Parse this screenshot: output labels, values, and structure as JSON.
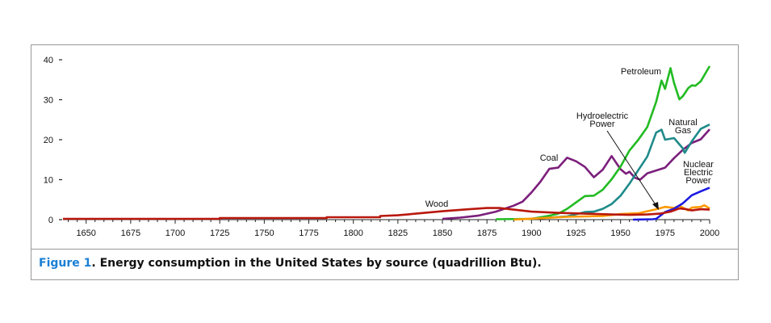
{
  "chart_data": {
    "type": "line",
    "title": "",
    "xlabel": "",
    "ylabel": "",
    "xlim": [
      1637,
      2000
    ],
    "ylim": [
      0,
      40
    ],
    "y_ticks": [
      0,
      10,
      20,
      30,
      40
    ],
    "x_ticks": [
      1650,
      1675,
      1700,
      1725,
      1750,
      1775,
      1800,
      1825,
      1850,
      1875,
      1900,
      1925,
      1950,
      1975,
      2000
    ],
    "grid": false,
    "series": [
      {
        "name": "Wood",
        "label_lines": [
          "Wood"
        ],
        "color": "#b8180e",
        "points": [
          [
            1637,
            0.2
          ],
          [
            1725,
            0.2
          ],
          [
            1725,
            0.4
          ],
          [
            1785,
            0.4
          ],
          [
            1785,
            0.6
          ],
          [
            1815,
            0.6
          ],
          [
            1815,
            0.9
          ],
          [
            1825,
            1.1
          ],
          [
            1835,
            1.5
          ],
          [
            1850,
            2.1
          ],
          [
            1865,
            2.6
          ],
          [
            1875,
            2.9
          ],
          [
            1882,
            2.9
          ],
          [
            1890,
            2.5
          ],
          [
            1900,
            2.0
          ],
          [
            1915,
            1.7
          ],
          [
            1930,
            1.5
          ],
          [
            1945,
            1.3
          ],
          [
            1955,
            1.2
          ],
          [
            1965,
            1.3
          ],
          [
            1972,
            1.5
          ],
          [
            1978,
            2.0
          ],
          [
            1983,
            2.8
          ],
          [
            1987,
            2.6
          ],
          [
            1990,
            2.3
          ],
          [
            1995,
            2.6
          ],
          [
            2000,
            2.5
          ]
        ]
      },
      {
        "name": "Coal",
        "label_lines": [
          "Coal"
        ],
        "color": "#7b1f7b",
        "points": [
          [
            1850,
            0.2
          ],
          [
            1860,
            0.5
          ],
          [
            1870,
            1.0
          ],
          [
            1880,
            2.0
          ],
          [
            1890,
            3.5
          ],
          [
            1895,
            4.5
          ],
          [
            1900,
            6.8
          ],
          [
            1905,
            9.5
          ],
          [
            1910,
            12.7
          ],
          [
            1915,
            13.0
          ],
          [
            1920,
            15.5
          ],
          [
            1925,
            14.6
          ],
          [
            1930,
            13.2
          ],
          [
            1935,
            10.6
          ],
          [
            1940,
            12.5
          ],
          [
            1945,
            15.9
          ],
          [
            1950,
            12.6
          ],
          [
            1953,
            11.5
          ],
          [
            1955,
            12.0
          ],
          [
            1958,
            10.5
          ],
          [
            1961,
            10.0
          ],
          [
            1965,
            11.6
          ],
          [
            1970,
            12.3
          ],
          [
            1975,
            13.0
          ],
          [
            1980,
            15.4
          ],
          [
            1985,
            17.5
          ],
          [
            1990,
            19.2
          ],
          [
            1995,
            20.1
          ],
          [
            2000,
            22.6
          ]
        ]
      },
      {
        "name": "Petroleum",
        "label_lines": [
          "Petroleum"
        ],
        "color": "#22bb22",
        "points": [
          [
            1880,
            0.1
          ],
          [
            1900,
            0.2
          ],
          [
            1910,
            1.0
          ],
          [
            1915,
            1.5
          ],
          [
            1920,
            2.7
          ],
          [
            1925,
            4.3
          ],
          [
            1930,
            5.9
          ],
          [
            1935,
            6.0
          ],
          [
            1940,
            7.5
          ],
          [
            1945,
            10.1
          ],
          [
            1950,
            13.3
          ],
          [
            1955,
            17.3
          ],
          [
            1960,
            20.0
          ],
          [
            1965,
            23.2
          ],
          [
            1970,
            29.5
          ],
          [
            1973,
            34.8
          ],
          [
            1975,
            32.7
          ],
          [
            1978,
            37.9
          ],
          [
            1980,
            34.2
          ],
          [
            1983,
            30.1
          ],
          [
            1985,
            30.9
          ],
          [
            1988,
            32.9
          ],
          [
            1990,
            33.6
          ],
          [
            1992,
            33.5
          ],
          [
            1995,
            34.6
          ],
          [
            2000,
            38.4
          ]
        ]
      },
      {
        "name": "Natural Gas",
        "label_lines": [
          "Natural",
          "Gas"
        ],
        "color": "#1f8a8a",
        "points": [
          [
            1900,
            0.25
          ],
          [
            1910,
            0.5
          ],
          [
            1920,
            0.8
          ],
          [
            1930,
            1.9
          ],
          [
            1935,
            2.0
          ],
          [
            1940,
            2.7
          ],
          [
            1945,
            3.9
          ],
          [
            1950,
            6.0
          ],
          [
            1955,
            9.0
          ],
          [
            1960,
            12.4
          ],
          [
            1965,
            15.8
          ],
          [
            1970,
            21.8
          ],
          [
            1973,
            22.5
          ],
          [
            1975,
            20.0
          ],
          [
            1980,
            20.4
          ],
          [
            1985,
            17.8
          ],
          [
            1986,
            16.7
          ],
          [
            1990,
            19.6
          ],
          [
            1995,
            22.7
          ],
          [
            2000,
            23.8
          ]
        ]
      },
      {
        "name": "Hydroelectric Power",
        "label_lines": [
          "Hydroelectric",
          "Power"
        ],
        "color": "#ff9900",
        "points": [
          [
            1890,
            0.02
          ],
          [
            1900,
            0.25
          ],
          [
            1920,
            0.7
          ],
          [
            1930,
            0.8
          ],
          [
            1940,
            0.9
          ],
          [
            1950,
            1.4
          ],
          [
            1960,
            1.6
          ],
          [
            1970,
            2.6
          ],
          [
            1975,
            3.2
          ],
          [
            1980,
            2.9
          ],
          [
            1983,
            3.5
          ],
          [
            1985,
            3.0
          ],
          [
            1988,
            2.3
          ],
          [
            1990,
            3.0
          ],
          [
            1995,
            3.2
          ],
          [
            1997,
            3.6
          ],
          [
            2000,
            2.8
          ]
        ]
      },
      {
        "name": "Nuclear Electric Power",
        "label_lines": [
          "Nuclear",
          "Electric",
          "Power"
        ],
        "color": "#1a1ae0",
        "points": [
          [
            1957,
            0
          ],
          [
            1968,
            0.1
          ],
          [
            1970,
            0.2
          ],
          [
            1975,
            1.9
          ],
          [
            1980,
            2.7
          ],
          [
            1985,
            4.1
          ],
          [
            1990,
            6.1
          ],
          [
            1995,
            7.1
          ],
          [
            2000,
            8.0
          ]
        ]
      }
    ]
  },
  "caption": {
    "figure_label": "Figure 1",
    "text": ". Energy consumption in the United States by source (quadrillion Btu)."
  }
}
